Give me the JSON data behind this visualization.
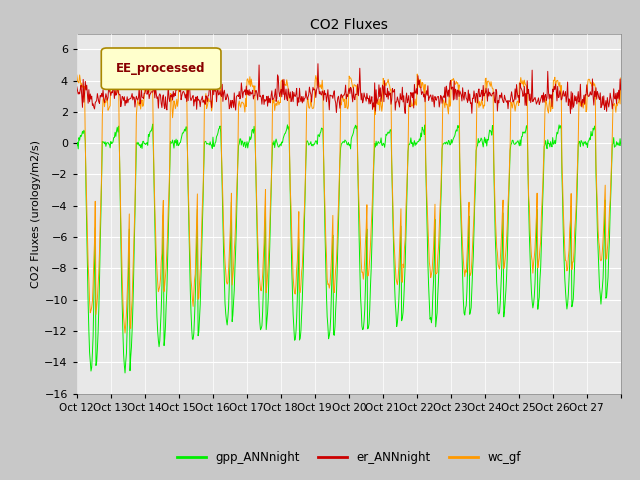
{
  "title": "CO2 Fluxes",
  "ylabel": "CO2 Fluxes (urology/m2/s)",
  "ylim": [
    -16,
    7
  ],
  "yticks": [
    -16,
    -14,
    -12,
    -10,
    -8,
    -6,
    -4,
    -2,
    0,
    2,
    4,
    6
  ],
  "fig_bg_color": "#c8c8c8",
  "plot_bg_color": "#e8e8e8",
  "gpp_color": "#00ee00",
  "er_color": "#cc0000",
  "wc_color": "#ff9900",
  "legend_label": "EE_processed",
  "legend_bg": "#ffffcc",
  "legend_edge": "#aa8800",
  "legend_text_color": "#880000",
  "line_labels": [
    "gpp_ANNnight",
    "er_ANNnight",
    "wc_gf"
  ],
  "n_days": 16,
  "points_per_day": 48
}
